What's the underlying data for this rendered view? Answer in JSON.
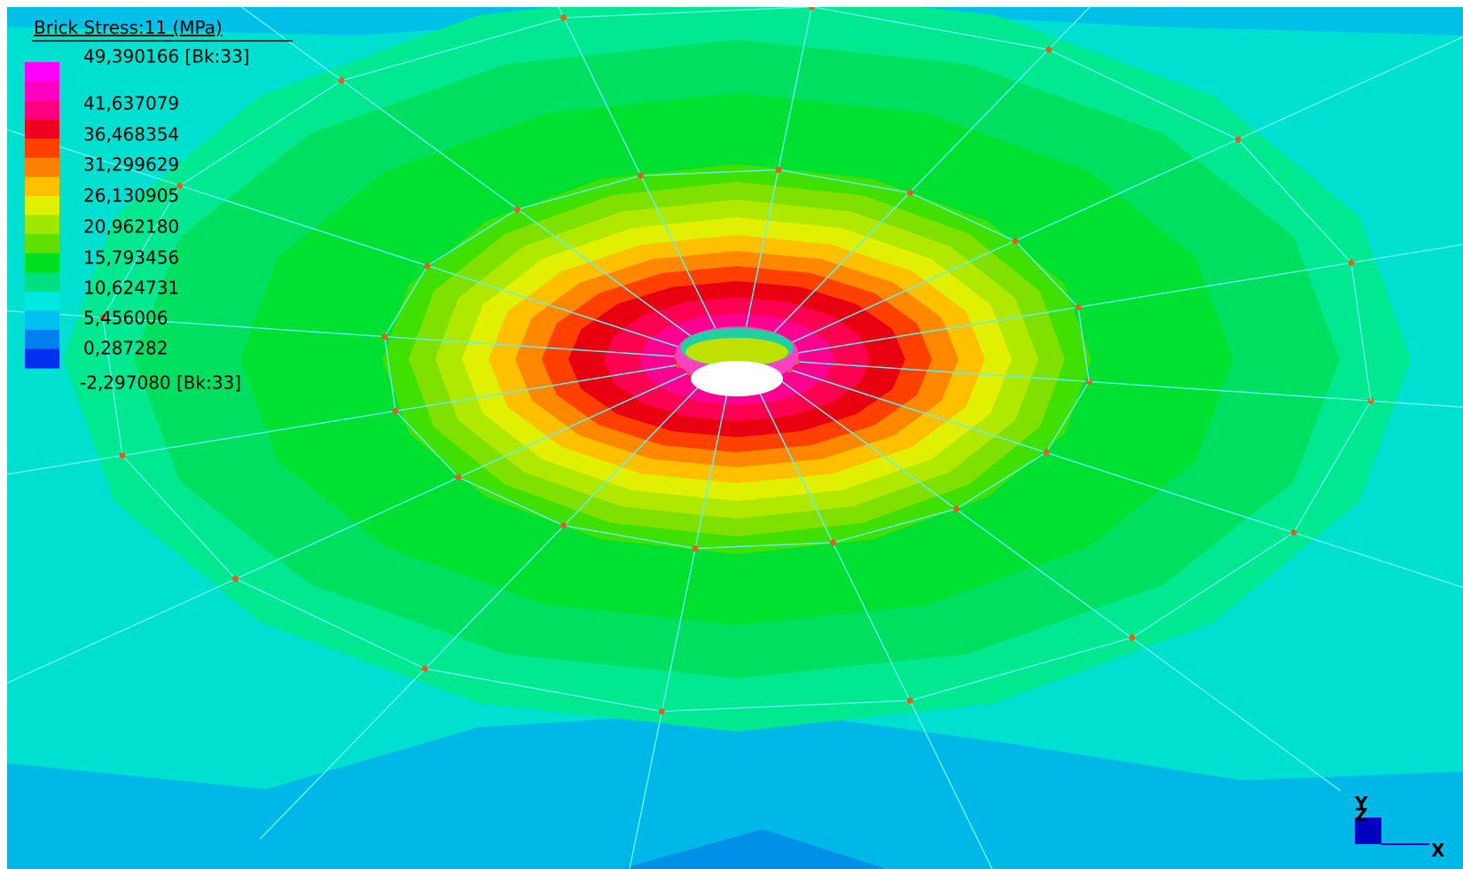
{
  "legend": {
    "title": "Brick Stress:11 (MPa)",
    "labels": [
      "49,390166 [Bk:33]",
      "41,637079",
      "36,468354",
      "31,299629",
      "26,130905",
      "20,962180",
      "15,793456",
      "10,624731",
      "5,456006",
      "0,287282",
      "-2,297080 [Bk:33]"
    ]
  },
  "triad": {
    "y": "Y",
    "z": "Z",
    "x": "X"
  }
}
